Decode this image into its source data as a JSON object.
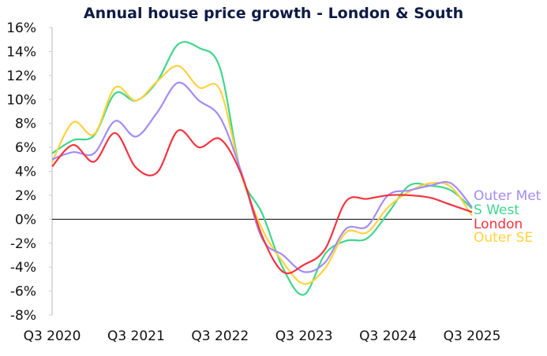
{
  "chart_data": {
    "type": "line",
    "title": "Annual house price growth - London & South",
    "xlabel": "",
    "ylabel": "",
    "x": [
      "Q3 2020",
      "Q4 2020",
      "Q1 2021",
      "Q2 2021",
      "Q3 2021",
      "Q4 2021",
      "Q1 2022",
      "Q2 2022",
      "Q3 2022",
      "Q4 2022",
      "Q1 2023",
      "Q2 2023",
      "Q3 2023",
      "Q4 2023",
      "Q1 2024",
      "Q2 2024",
      "Q3 2024",
      "Q4 2024",
      "Q1 2025",
      "Q2 2025",
      "Q3 2025"
    ],
    "x_tick_labels": [
      "Q3 2020",
      "Q3 2021",
      "Q3 2022",
      "Q3 2023",
      "Q3 2024",
      "Q3 2025"
    ],
    "y_tick_labels": [
      "16%",
      "14%",
      "12%",
      "10%",
      "8%",
      "6%",
      "4%",
      "2%",
      "0%",
      "-2%",
      "-4%",
      "-6%",
      "-8%"
    ],
    "ylim": [
      -8,
      16
    ],
    "grid": false,
    "legend": "right, end-of-line labels",
    "series": [
      {
        "name": "Outer Met",
        "color": "#a48cf5",
        "values": [
          5.0,
          5.6,
          5.5,
          8.2,
          6.9,
          8.9,
          11.4,
          9.9,
          8.5,
          4.0,
          -1.6,
          -3.0,
          -4.4,
          -3.6,
          -0.8,
          -0.6,
          2.0,
          2.4,
          2.8,
          3.0,
          1.0
        ]
      },
      {
        "name": "S West",
        "color": "#3fd68c",
        "values": [
          5.5,
          6.6,
          7.0,
          10.5,
          9.9,
          11.5,
          14.6,
          14.3,
          12.6,
          3.8,
          0.5,
          -4.1,
          -6.3,
          -2.9,
          -1.8,
          -1.6,
          0.5,
          2.8,
          2.8,
          2.4,
          0.9
        ]
      },
      {
        "name": "London",
        "color": "#f5333f",
        "values": [
          4.4,
          6.2,
          4.8,
          7.2,
          4.3,
          3.9,
          7.4,
          6.0,
          6.7,
          3.8,
          -1.4,
          -4.4,
          -3.8,
          -2.5,
          1.5,
          1.7,
          2.0,
          2.0,
          1.8,
          1.2,
          0.6
        ]
      },
      {
        "name": "Outer SE",
        "color": "#ffd23f",
        "values": [
          4.8,
          8.1,
          7.1,
          11.0,
          9.9,
          11.5,
          12.8,
          11.0,
          10.8,
          3.8,
          -0.8,
          -3.6,
          -5.4,
          -4.1,
          -1.1,
          -1.1,
          1.0,
          2.3,
          3.0,
          2.7,
          0.3
        ]
      }
    ]
  }
}
